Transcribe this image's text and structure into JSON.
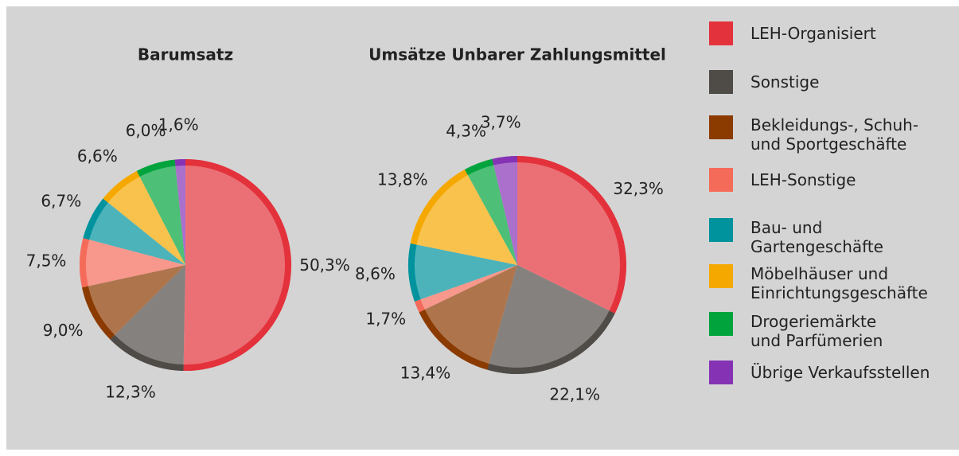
{
  "chart_data": [
    {
      "type": "pie",
      "title": "Barumsatz",
      "values": [
        50.3,
        12.3,
        9.0,
        7.5,
        6.7,
        6.6,
        6.0,
        1.6
      ],
      "value_labels": [
        "50,3%",
        "12,3%",
        "9,0%",
        "7,5%",
        "6,7%",
        "6,6%",
        "6,0%",
        "1,6%"
      ]
    },
    {
      "type": "pie",
      "title": "Umsätze Unbarer Zahlungsmittel",
      "values": [
        32.3,
        22.1,
        13.4,
        1.7,
        8.6,
        13.8,
        4.3,
        3.7
      ],
      "value_labels": [
        "32,3%",
        "22,1%",
        "13,4%",
        "1,7%",
        "8,6%",
        "13,8%",
        "4,3%",
        "3,7%"
      ]
    }
  ],
  "legend": [
    {
      "name": "LEH-Organisiert",
      "color": "#e3323b"
    },
    {
      "name": "Sonstige",
      "color": "#4f4b47"
    },
    {
      "name": "Bekleidungs-, Schuh-\nund Sportgeschäfte",
      "color": "#8b3a00"
    },
    {
      "name": "LEH-Sonstige",
      "color": "#f56b5a"
    },
    {
      "name": "Bau- und\nGartengeschäfte",
      "color": "#00939d"
    },
    {
      "name": "Möbelhäuser und\nEinrichtungsgeschäfte",
      "color": "#f5a800"
    },
    {
      "name": "Drogeriemärkte\nund Parfümerien",
      "color": "#00a33c"
    },
    {
      "name": "Übrige Verkaufsstellen",
      "color": "#8532b4"
    }
  ]
}
